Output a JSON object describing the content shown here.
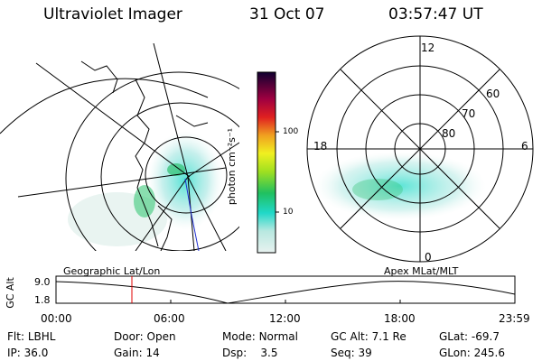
{
  "header": {
    "title": "Ultraviolet Imager",
    "date": "31 Oct 07",
    "time": "03:57:47 UT"
  },
  "colorbar": {
    "ticks": [
      "100",
      "10"
    ],
    "unit_label": "photon cm⁻²s⁻¹"
  },
  "polar": {
    "lat_labels": [
      "60",
      "70",
      "80"
    ],
    "mlt_labels": [
      "12",
      "18",
      "6",
      "0"
    ]
  },
  "panels": {
    "left_caption": "Geographic Lat/Lon",
    "right_caption": "Apex MLat/MLT"
  },
  "altplot": {
    "ylabel": "GC Alt",
    "y_ticks": [
      "9.0",
      "1.8"
    ],
    "x_ticks": [
      "00:00",
      "06:00",
      "12:00",
      "18:00",
      "23:59"
    ],
    "marker_time": "03:57:47"
  },
  "info": {
    "row1": [
      {
        "label": "Flt:",
        "value": "LBHL"
      },
      {
        "label": "Door:",
        "value": "Open"
      },
      {
        "label": "Mode:",
        "value": "Normal"
      },
      {
        "label": "GC Alt:",
        "value": "7.1 Re"
      },
      {
        "label": "GLat:",
        "value": "-69.7"
      }
    ],
    "row2": [
      {
        "label": "IP:",
        "value": "36.0"
      },
      {
        "label": "Gain:",
        "value": "14"
      },
      {
        "label": "Dsp:",
        "value": "3.5"
      },
      {
        "label": "Seq:",
        "value": "39"
      },
      {
        "label": "GLon:",
        "value": "245.6"
      }
    ]
  },
  "colors": {
    "marker": "#e00000",
    "aurora_low": "#bfe8e0",
    "aurora_mid": "#40e0d0",
    "aurora_high": "#30c070"
  }
}
